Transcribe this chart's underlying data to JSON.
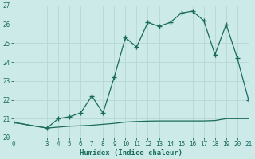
{
  "xlabel": "Humidex (Indice chaleur)",
  "x_main": [
    0,
    3,
    4,
    5,
    6,
    7,
    8,
    9,
    10,
    11,
    12,
    13,
    14,
    15,
    16,
    17,
    18,
    19,
    20,
    21
  ],
  "y_main": [
    20.8,
    20.5,
    21.0,
    21.1,
    21.3,
    22.2,
    21.3,
    23.2,
    25.3,
    24.8,
    26.1,
    25.9,
    26.1,
    26.6,
    26.7,
    26.2,
    24.4,
    26.0,
    24.2,
    22.0
  ],
  "x_flat": [
    0,
    3,
    4,
    5,
    6,
    7,
    8,
    9,
    10,
    11,
    12,
    13,
    14,
    15,
    16,
    17,
    18,
    19,
    20,
    21
  ],
  "y_flat": [
    20.8,
    20.5,
    20.55,
    20.6,
    20.62,
    20.65,
    20.7,
    20.75,
    20.82,
    20.85,
    20.87,
    20.88,
    20.88,
    20.88,
    20.88,
    20.88,
    20.9,
    21.0,
    21.0,
    21.0
  ],
  "line_color": "#1a6b5a",
  "bg_color": "#cceae8",
  "grid_major_color": "#b8d8d4",
  "grid_minor_color": "#d0e8e4",
  "ylim": [
    20,
    27
  ],
  "xlim": [
    0,
    21
  ],
  "yticks": [
    20,
    21,
    22,
    23,
    24,
    25,
    26,
    27
  ],
  "xticks": [
    0,
    3,
    4,
    5,
    6,
    7,
    8,
    9,
    10,
    11,
    12,
    13,
    14,
    15,
    16,
    17,
    18,
    19,
    20,
    21
  ],
  "marker": "+",
  "markersize": 4,
  "markeredgewidth": 1.0,
  "linewidth": 0.9
}
